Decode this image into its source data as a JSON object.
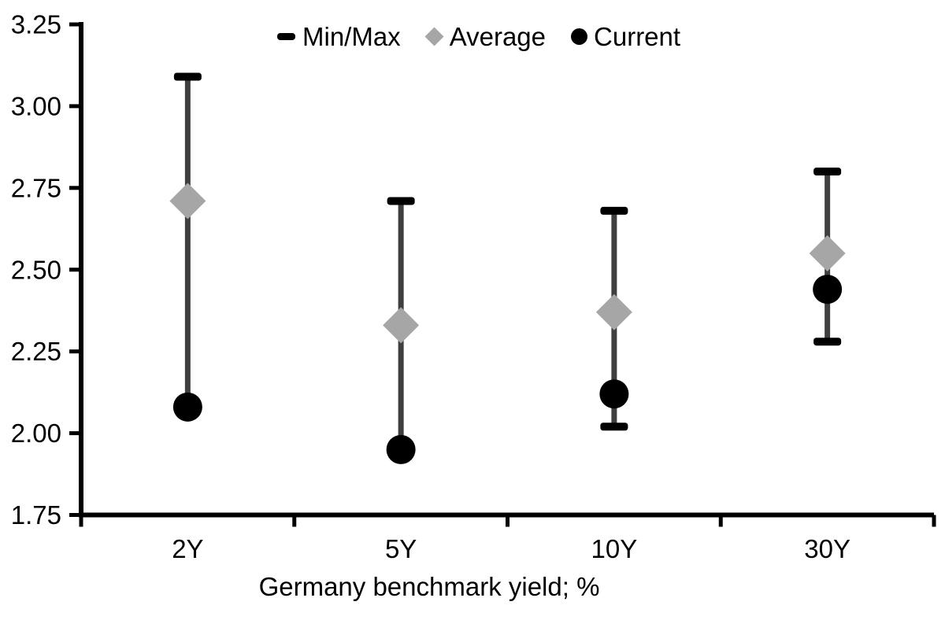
{
  "legend": {
    "items": [
      {
        "label": "Min/Max",
        "marker": "dash-icon"
      },
      {
        "label": "Average",
        "marker": "diamond-icon"
      },
      {
        "label": "Current",
        "marker": "circle-icon"
      }
    ]
  },
  "chart_data": {
    "type": "scatter",
    "subtype": "min-max-range-with-markers",
    "categories": [
      "2Y",
      "5Y",
      "10Y",
      "30Y"
    ],
    "series": [
      {
        "name": "Min/Max",
        "role": "range",
        "min": [
          2.08,
          1.95,
          2.02,
          2.28
        ],
        "max": [
          3.09,
          2.71,
          2.68,
          2.8
        ]
      },
      {
        "name": "Average",
        "role": "point",
        "marker": "diamond",
        "values": [
          2.71,
          2.33,
          2.37,
          2.55
        ]
      },
      {
        "name": "Current",
        "role": "point",
        "marker": "circle",
        "values": [
          2.08,
          1.95,
          2.12,
          2.44
        ]
      }
    ],
    "title": "",
    "xlabel": "Germany benchmark yield; %",
    "ylabel": "",
    "ylim": [
      1.75,
      3.25
    ],
    "ytick_step": 0.25,
    "yticks": [
      "1.75",
      "2.00",
      "2.25",
      "2.50",
      "2.75",
      "3.00",
      "3.25"
    ],
    "grid": false,
    "legend_position": "top-center",
    "colors": {
      "range_line": "#3f3f3f",
      "range_cap": "#000000",
      "average_marker": "#a6a6a6",
      "current_marker": "#000000",
      "axis": "#000000",
      "text": "#000000",
      "background": "#ffffff"
    }
  }
}
